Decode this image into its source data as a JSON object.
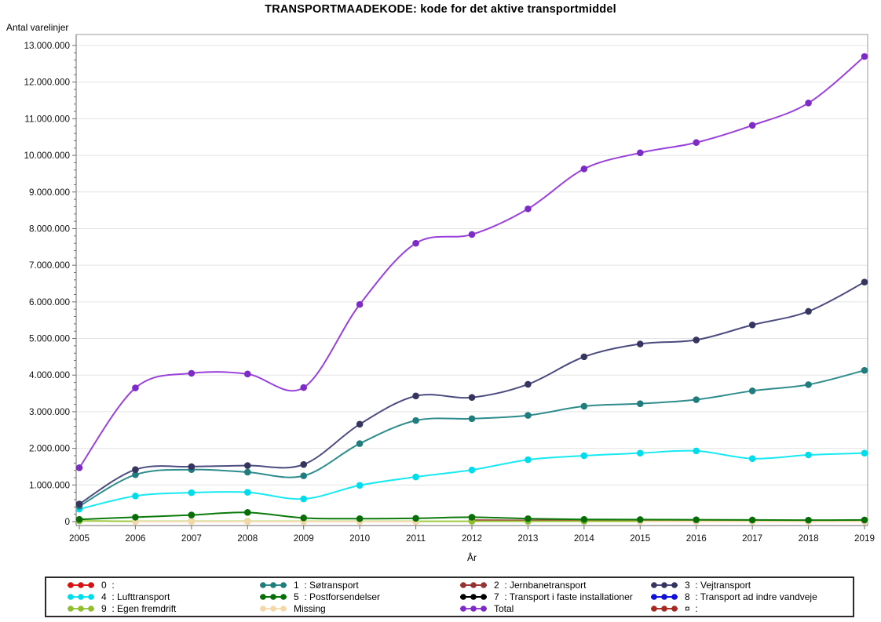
{
  "chart_data": {
    "type": "line",
    "title": "TRANSPORTMAADEKODE: kode for det aktive transportmiddel",
    "ylabel": "Antal varelinjer",
    "xlabel": "År",
    "x": [
      2005,
      2006,
      2007,
      2008,
      2009,
      2010,
      2011,
      2012,
      2013,
      2014,
      2015,
      2016,
      2017,
      2018,
      2019
    ],
    "ylim": [
      0,
      13000000
    ],
    "ytick_interval": 1000000,
    "yminor_interval": 200000,
    "grid": "horizontal",
    "legend_position": "bottom-box",
    "series": [
      {
        "name": "0  :",
        "color": "#e02020",
        "dot_color": "#d41414",
        "values": [
          null,
          null,
          null,
          null,
          null,
          null,
          null,
          null,
          null,
          null,
          null,
          null,
          null,
          null,
          null
        ]
      },
      {
        "name": "1  : Søtransport",
        "color": "#2f8c8c",
        "dot_color": "#217d7d",
        "values": [
          420000,
          1280000,
          1420000,
          1350000,
          1250000,
          2130000,
          2760000,
          2810000,
          2900000,
          3150000,
          3220000,
          3330000,
          3570000,
          3740000,
          4130000
        ]
      },
      {
        "name": "2  : Jernbanetransport",
        "color": "#a03a3a",
        "dot_color": "#963434",
        "values": [
          null,
          null,
          null,
          null,
          null,
          null,
          null,
          40000,
          33000,
          30000,
          25000,
          22000,
          20000,
          20000,
          20000
        ]
      },
      {
        "name": "3  : Vejtransport",
        "color": "#4c4c80",
        "dot_color": "#35355f",
        "values": [
          480000,
          1420000,
          1500000,
          1530000,
          1560000,
          2660000,
          3430000,
          3390000,
          3750000,
          4500000,
          4850000,
          4960000,
          5370000,
          5740000,
          6540000
        ]
      },
      {
        "name": "4  : Lufttransport",
        "color": "#16e9f2",
        "dot_color": "#00dcec",
        "values": [
          340000,
          700000,
          790000,
          800000,
          620000,
          990000,
          1220000,
          1410000,
          1690000,
          1800000,
          1870000,
          1930000,
          1720000,
          1820000,
          1870000
        ]
      },
      {
        "name": "5  : Postforsendelser",
        "color": "#0b7a0b",
        "dot_color": "#076e07",
        "values": [
          60000,
          120000,
          180000,
          250000,
          100000,
          80000,
          90000,
          120000,
          80000,
          60000,
          55000,
          50000,
          45000,
          40000,
          45000
        ]
      },
      {
        "name": "7  : Transport i faste installationer",
        "color": "#000000",
        "dot_color": "#000000",
        "values": [
          null,
          null,
          null,
          null,
          null,
          null,
          null,
          null,
          null,
          null,
          null,
          null,
          null,
          null,
          null
        ]
      },
      {
        "name": "8  : Transport ad indre vandveje",
        "color": "#1818e6",
        "dot_color": "#1010d6",
        "values": [
          null,
          null,
          null,
          null,
          null,
          null,
          null,
          null,
          null,
          null,
          null,
          null,
          null,
          null,
          null
        ]
      },
      {
        "name": "9  : Egen fremdrift",
        "color": "#9dc93e",
        "dot_color": "#90bd32",
        "values": [
          20000,
          8000,
          8000,
          8000,
          8000,
          8000,
          8000,
          8000,
          8000,
          8000,
          8000,
          8000,
          8000,
          8000,
          8000
        ]
      },
      {
        "name": "Missing",
        "color": "#f8ddb4",
        "dot_color": "#f5d8aa",
        "values": [
          null,
          0,
          0,
          0,
          0,
          0,
          0,
          null,
          null,
          null,
          0,
          0,
          0,
          0,
          0
        ]
      },
      {
        "name": "Total",
        "color": "#9a41dc",
        "dot_color": "#7c2bc4",
        "values": [
          1470000,
          3650000,
          4050000,
          4030000,
          3660000,
          5930000,
          7600000,
          7840000,
          8540000,
          9630000,
          10070000,
          10350000,
          10820000,
          11430000,
          12700000
        ]
      },
      {
        "name": "¤  :",
        "color": "#ae3129",
        "dot_color": "#a52a22",
        "values": [
          null,
          null,
          null,
          null,
          null,
          null,
          null,
          null,
          null,
          null,
          null,
          null,
          null,
          null,
          null
        ]
      }
    ],
    "plot_order": [
      0,
      6,
      7,
      11,
      2,
      8,
      9,
      5,
      4,
      1,
      3,
      10
    ],
    "legend_order": [
      0,
      1,
      2,
      3,
      4,
      5,
      6,
      7,
      8,
      9,
      10,
      11
    ]
  }
}
